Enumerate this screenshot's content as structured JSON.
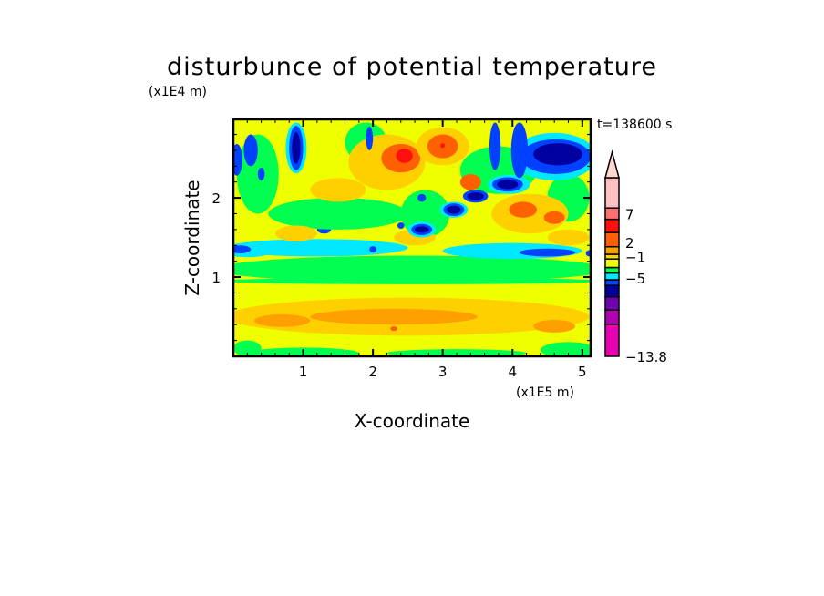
{
  "chart_data": {
    "type": "heatmap",
    "subtype": "filled-contour",
    "title": "disturbunce of potential temperature",
    "xlabel": "X-coordinate",
    "ylabel": "Z-coordinate",
    "x_unit": "(x1E5 m)",
    "y_unit": "(x1E4 m)",
    "time_label": "t=138600 s",
    "xlim": [
      0,
      5.12
    ],
    "ylim": [
      0,
      2.99
    ],
    "xticks": [
      "1",
      "2",
      "3",
      "4",
      "5"
    ],
    "xtick_values": [
      1,
      2,
      3,
      4,
      5
    ],
    "yticks": [
      "1",
      "2"
    ],
    "ytick_values": [
      1,
      2
    ],
    "colorbar": {
      "colors": [
        "#e800b0",
        "#b000b0",
        "#7000b0",
        "#0000a0",
        "#0040ff",
        "#00e8ff",
        "#00ff50",
        "#f0ff00",
        "#ffd000",
        "#ffa000",
        "#ff6000",
        "#ff1010",
        "#ff7070",
        "#ffc0c0"
      ],
      "extend_color": "#ffd8d0",
      "labels": [
        "-13.8",
        "-5",
        "-1",
        "2",
        "7"
      ],
      "label_positions": [
        0,
        5.3,
        8.5,
        10.3,
        12.5
      ]
    },
    "background_level": 7,
    "features": [
      [
        2.5,
        0.5,
        2.6,
        0.24,
        8
      ],
      [
        2.3,
        0.5,
        1.2,
        0.1,
        9
      ],
      [
        0.7,
        0.45,
        0.4,
        0.08,
        9
      ],
      [
        4.6,
        0.38,
        0.3,
        0.08,
        9
      ],
      [
        2.3,
        0.35,
        0.05,
        0.03,
        10
      ],
      [
        1.0,
        0.04,
        0.8,
        0.07,
        6
      ],
      [
        3.2,
        0.04,
        1.0,
        0.05,
        6
      ],
      [
        4.8,
        0.08,
        0.4,
        0.1,
        6
      ],
      [
        0.2,
        0.1,
        0.2,
        0.1,
        6
      ],
      [
        2.56,
        1.1,
        2.8,
        0.17,
        6
      ],
      [
        2.56,
        0.95,
        2.8,
        0.04,
        6
      ],
      [
        1.2,
        1.37,
        1.3,
        0.11,
        5
      ],
      [
        4.0,
        1.33,
        1.0,
        0.1,
        5
      ],
      [
        0.2,
        1.33,
        0.35,
        0.08,
        5
      ],
      [
        0.1,
        1.35,
        0.15,
        0.05,
        4
      ],
      [
        4.5,
        1.31,
        0.4,
        0.05,
        4
      ],
      [
        5.1,
        1.3,
        0.05,
        0.04,
        4
      ],
      [
        1.3,
        1.6,
        0.1,
        0.05,
        4
      ],
      [
        2.0,
        1.35,
        0.05,
        0.04,
        4
      ],
      [
        1.5,
        1.8,
        1.0,
        0.2,
        6
      ],
      [
        3.8,
        2.35,
        0.55,
        0.3,
        6
      ],
      [
        0.35,
        2.3,
        0.3,
        0.5,
        6
      ],
      [
        2.75,
        1.8,
        0.35,
        0.3,
        6
      ],
      [
        4.8,
        2.0,
        0.3,
        0.3,
        6
      ],
      [
        1.9,
        2.7,
        0.3,
        0.25,
        6
      ],
      [
        2.2,
        2.45,
        0.55,
        0.35,
        8
      ],
      [
        2.4,
        2.5,
        0.28,
        0.18,
        10
      ],
      [
        2.45,
        2.53,
        0.12,
        0.09,
        11
      ],
      [
        3.0,
        2.65,
        0.38,
        0.24,
        8
      ],
      [
        3.0,
        2.65,
        0.22,
        0.15,
        10
      ],
      [
        3.0,
        2.66,
        0.03,
        0.03,
        11
      ],
      [
        1.5,
        2.1,
        0.4,
        0.15,
        8
      ],
      [
        4.25,
        1.8,
        0.55,
        0.25,
        8
      ],
      [
        4.15,
        1.85,
        0.2,
        0.1,
        10
      ],
      [
        4.6,
        1.75,
        0.15,
        0.08,
        10
      ],
      [
        3.4,
        2.2,
        0.15,
        0.1,
        10
      ],
      [
        0.9,
        1.55,
        0.3,
        0.1,
        8
      ],
      [
        2.6,
        1.5,
        0.3,
        0.1,
        8
      ],
      [
        4.8,
        1.5,
        0.3,
        0.1,
        8
      ],
      [
        2.7,
        1.6,
        0.2,
        0.1,
        5
      ],
      [
        2.7,
        1.6,
        0.15,
        0.07,
        4
      ],
      [
        2.7,
        1.6,
        0.1,
        0.04,
        3
      ],
      [
        3.16,
        1.85,
        0.2,
        0.1,
        5
      ],
      [
        3.16,
        1.85,
        0.15,
        0.08,
        4
      ],
      [
        3.16,
        1.85,
        0.1,
        0.05,
        3
      ],
      [
        3.47,
        2.02,
        0.18,
        0.08,
        4
      ],
      [
        3.47,
        2.02,
        0.12,
        0.05,
        3
      ],
      [
        3.95,
        2.17,
        0.3,
        0.12,
        5
      ],
      [
        3.93,
        2.17,
        0.22,
        0.09,
        4
      ],
      [
        3.93,
        2.17,
        0.15,
        0.06,
        3
      ],
      [
        4.6,
        2.52,
        0.6,
        0.3,
        5
      ],
      [
        4.62,
        2.52,
        0.5,
        0.22,
        4
      ],
      [
        4.65,
        2.55,
        0.35,
        0.14,
        3
      ],
      [
        4.1,
        2.6,
        0.12,
        0.35,
        4
      ],
      [
        3.75,
        2.65,
        0.08,
        0.3,
        4
      ],
      [
        0.9,
        2.63,
        0.15,
        0.32,
        5
      ],
      [
        0.9,
        2.63,
        0.1,
        0.28,
        4
      ],
      [
        0.9,
        2.63,
        0.06,
        0.2,
        3
      ],
      [
        0.05,
        2.48,
        0.08,
        0.2,
        4
      ],
      [
        0.25,
        2.6,
        0.1,
        0.2,
        4
      ],
      [
        1.95,
        2.75,
        0.05,
        0.15,
        4
      ],
      [
        2.7,
        2.0,
        0.06,
        0.05,
        4
      ],
      [
        2.4,
        1.65,
        0.05,
        0.04,
        4
      ],
      [
        0.4,
        2.3,
        0.05,
        0.08,
        4
      ]
    ]
  }
}
